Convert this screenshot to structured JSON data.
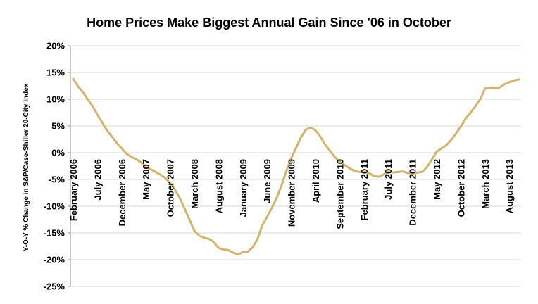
{
  "chart_data": {
    "type": "line",
    "title": "Home Prices Make Biggest Annual Gain Since '06 in October",
    "ylabel": "Y-O-Y % Change in S&P/Case-Shiller 20-City Index",
    "xlabel": "",
    "ylim": [
      -25,
      20
    ],
    "yticks": [
      20,
      15,
      10,
      5,
      0,
      -5,
      -10,
      -15,
      -20,
      -25
    ],
    "ytick_labels": [
      "20%",
      "15%",
      "10%",
      "5%",
      "0%",
      "-5%",
      "-10%",
      "-15%",
      "-20%",
      "-25%"
    ],
    "grid": true,
    "legend": "none",
    "line_color": "#d4b46a",
    "x_tick_labels": [
      {
        "label": "February 2006",
        "index": 0
      },
      {
        "label": "July 2006",
        "index": 5
      },
      {
        "label": "December 2006",
        "index": 10
      },
      {
        "label": "May 2007",
        "index": 15
      },
      {
        "label": "October 2007",
        "index": 20
      },
      {
        "label": "March 2008",
        "index": 25
      },
      {
        "label": "August 2008",
        "index": 30
      },
      {
        "label": "January 2009",
        "index": 35
      },
      {
        "label": "June 2009",
        "index": 40
      },
      {
        "label": "November 2009",
        "index": 45
      },
      {
        "label": "April 2010",
        "index": 50
      },
      {
        "label": "September 2010",
        "index": 55
      },
      {
        "label": "February 2011",
        "index": 60
      },
      {
        "label": "July 2011",
        "index": 65
      },
      {
        "label": "December 2011",
        "index": 70
      },
      {
        "label": "May 2012",
        "index": 75
      },
      {
        "label": "October 2012",
        "index": 80
      },
      {
        "label": "March 2013",
        "index": 85
      },
      {
        "label": "August 2013",
        "index": 90
      }
    ],
    "series": [
      {
        "values": [
          13.8,
          12.4,
          11.3,
          10.0,
          8.7,
          7.1,
          5.6,
          4.1,
          3.0,
          1.8,
          0.8,
          -0.2,
          -0.8,
          -1.2,
          -1.8,
          -2.7,
          -3.1,
          -3.6,
          -4.1,
          -4.7,
          -5.7,
          -6.9,
          -8.5,
          -10.5,
          -12.5,
          -14.6,
          -15.5,
          -15.9,
          -16.1,
          -16.7,
          -17.8,
          -18.1,
          -18.2,
          -18.7,
          -19.0,
          -18.6,
          -18.5,
          -17.7,
          -16.2,
          -13.6,
          -12.0,
          -10.3,
          -8.4,
          -6.1,
          -3.4,
          -1.0,
          0.9,
          2.9,
          4.3,
          4.7,
          4.2,
          3.0,
          1.5,
          0.3,
          -0.8,
          -1.7,
          -2.3,
          -2.9,
          -3.4,
          -3.6,
          -3.6,
          -3.8,
          -4.3,
          -4.5,
          -4.1,
          -3.6,
          -3.7,
          -3.6,
          -3.5,
          -3.8,
          -3.9,
          -3.7,
          -3.6,
          -2.7,
          -1.3,
          0.2,
          0.8,
          1.4,
          2.4,
          3.6,
          4.9,
          6.4,
          7.5,
          8.7,
          10.0,
          12.0,
          12.1,
          12.0,
          12.2,
          12.8,
          13.2,
          13.5,
          13.7
        ]
      }
    ]
  }
}
